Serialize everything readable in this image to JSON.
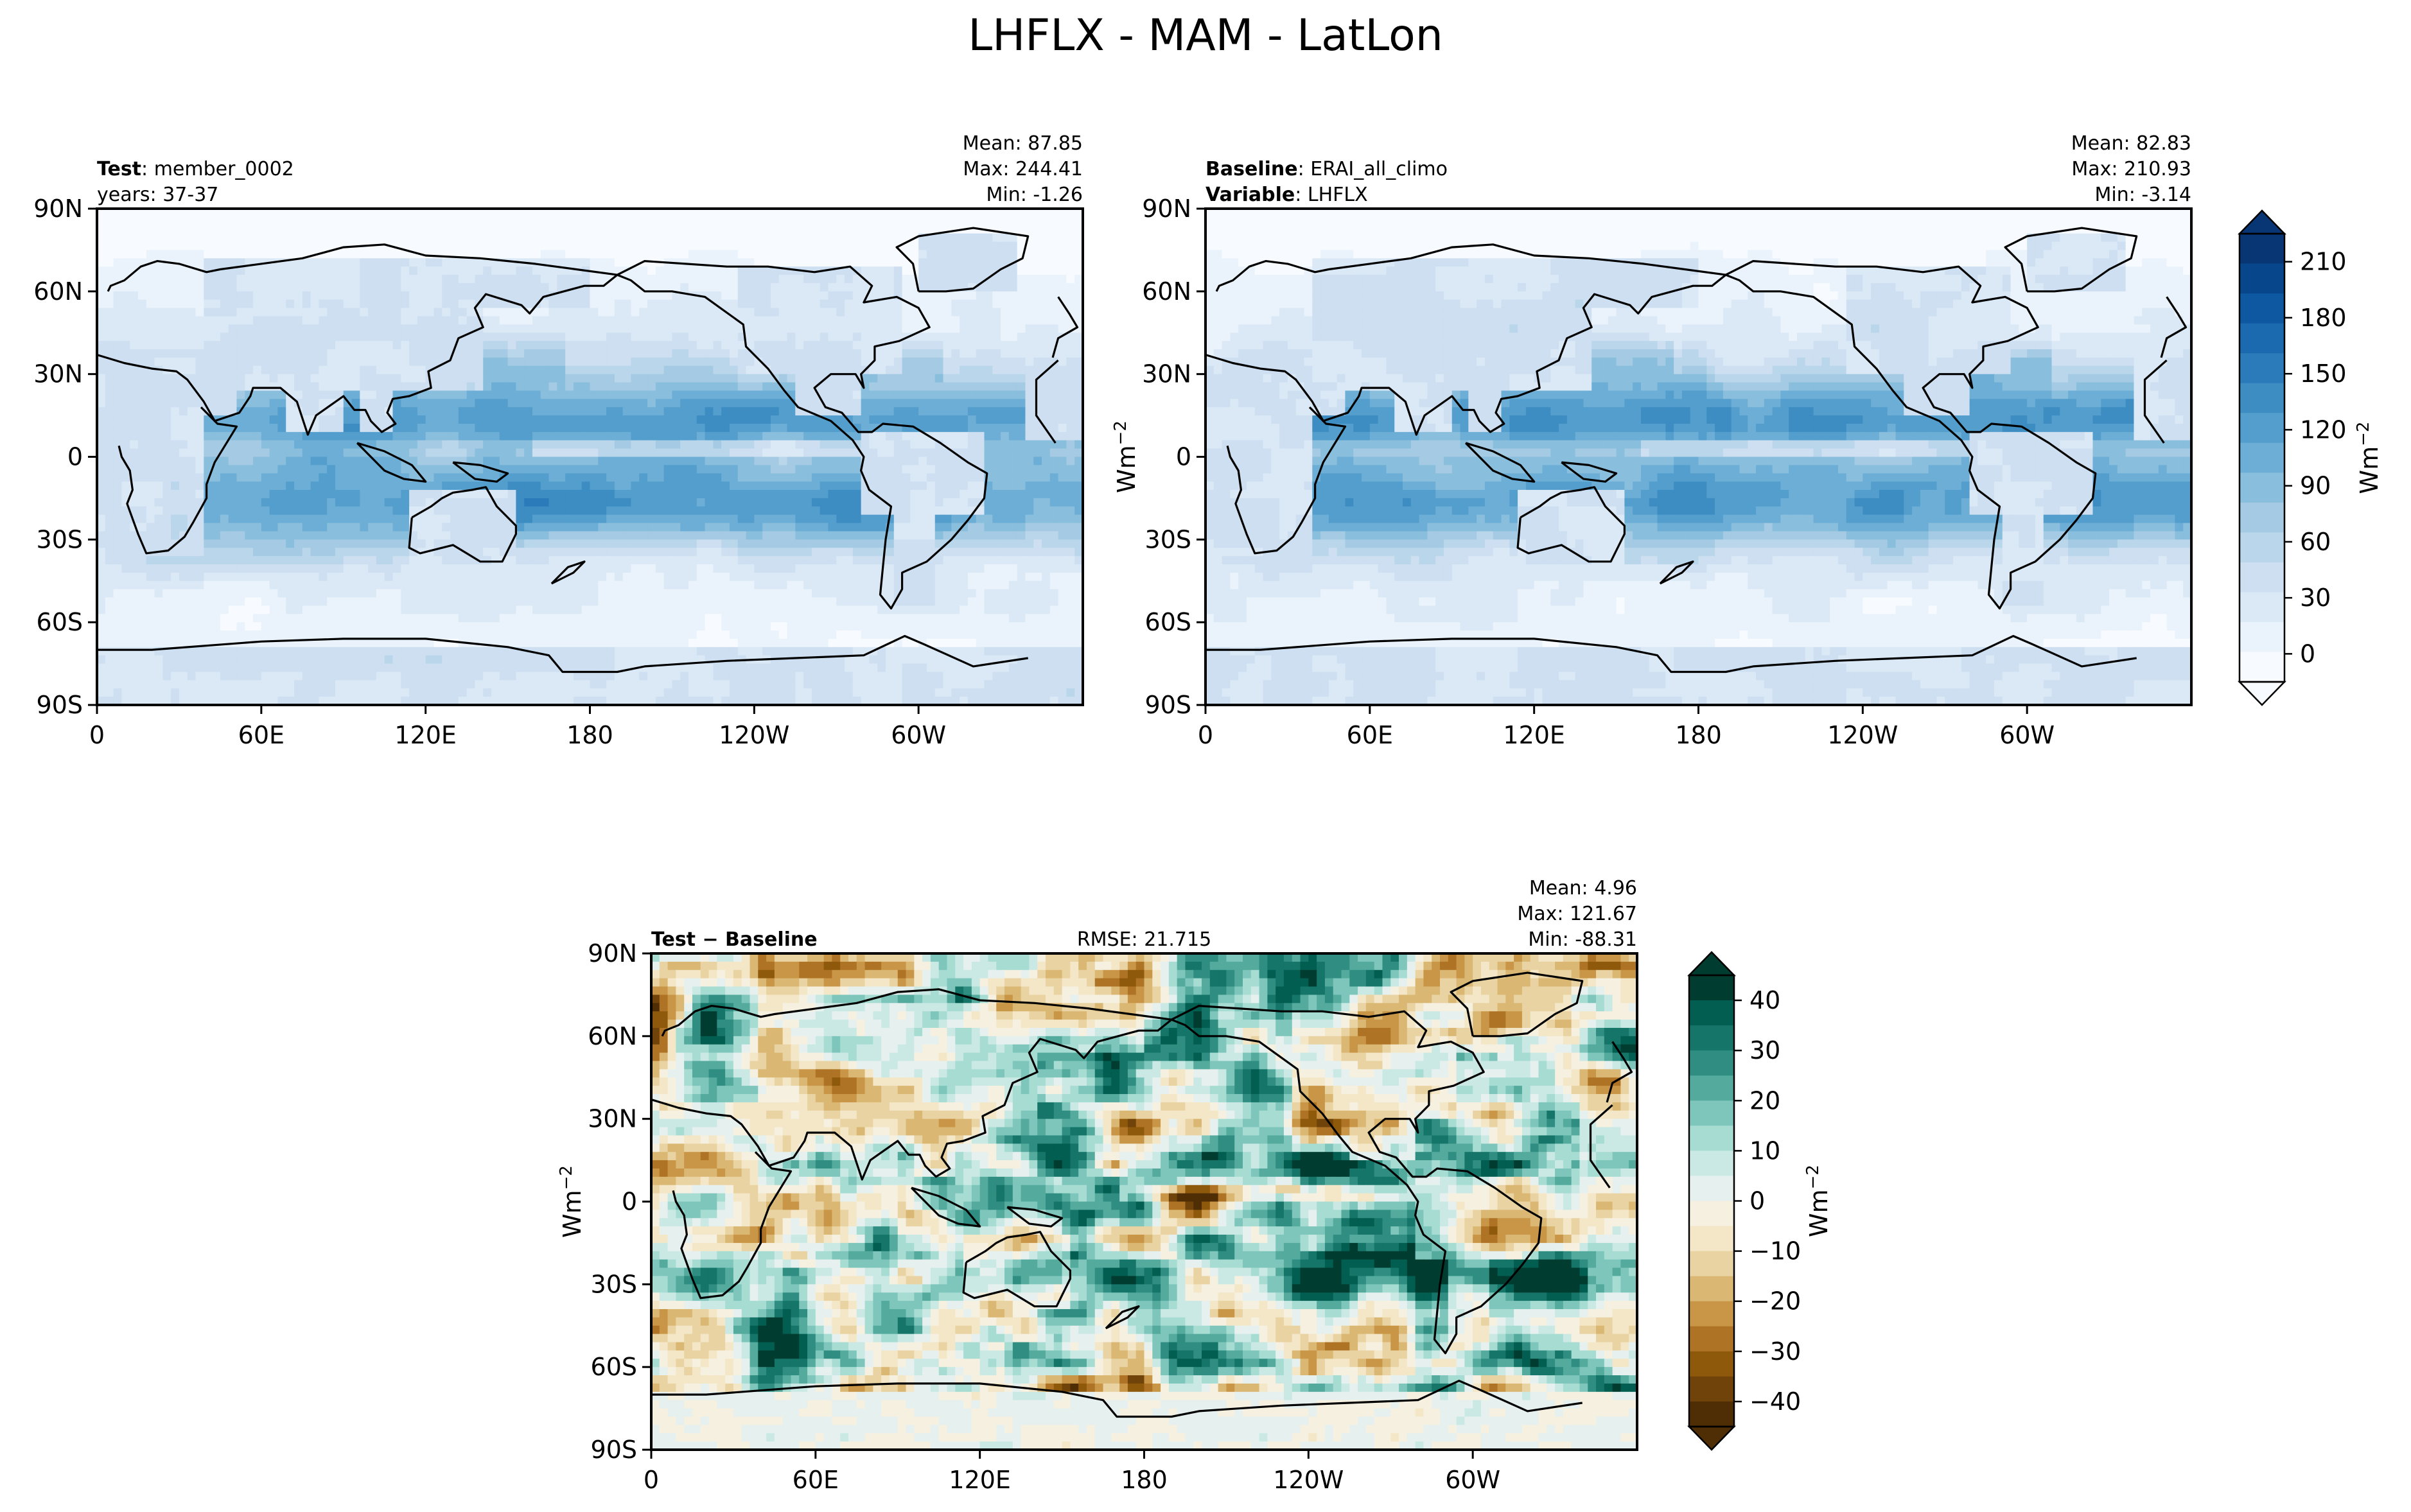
{
  "figure": {
    "title": "LHFLX - MAM - LatLon"
  },
  "panels": [
    {
      "id": "test",
      "left_lines": [
        {
          "bold": "Test",
          "sep": ": ",
          "rest": "member_0002"
        },
        {
          "bold": "",
          "sep": "",
          "rest": "years: 37-37"
        }
      ],
      "center": "",
      "stats": [
        "Mean: 87.85",
        "Max: 244.41",
        "Min: -1.26"
      ],
      "ylabel": "",
      "ylabel_sup": ""
    },
    {
      "id": "baseline",
      "left_lines": [
        {
          "bold": "Baseline",
          "sep": ": ",
          "rest": "ERAI_all_climo"
        },
        {
          "bold": "Variable",
          "sep": ": ",
          "rest": "LHFLX"
        }
      ],
      "center": "",
      "stats": [
        "Mean: 82.83",
        "Max: 210.93",
        "Min: -3.14"
      ],
      "ylabel": "Wm",
      "ylabel_sup": "−2"
    },
    {
      "id": "diff",
      "left_lines": [
        {
          "bold": "Test − Baseline",
          "sep": "",
          "rest": ""
        }
      ],
      "center": "RMSE: 21.715",
      "stats": [
        "Mean:  4.96",
        "Max: 121.67",
        "Min: -88.31"
      ],
      "ylabel": "Wm",
      "ylabel_sup": "−2"
    }
  ],
  "axes": {
    "xticks": [
      "0",
      "60E",
      "120E",
      "180",
      "120W",
      "60W"
    ],
    "yticks": [
      "90N",
      "60N",
      "30N",
      "0",
      "30S",
      "60S",
      "90S"
    ]
  },
  "colorbars": [
    {
      "id": "cbar-field",
      "label": "Wm",
      "label_sup": "−2",
      "ticks": [
        "210",
        "180",
        "150",
        "120",
        "90",
        "60",
        "30",
        "0"
      ],
      "colors": [
        "#f7fbff",
        "#eaf3fb",
        "#dbe9f6",
        "#cddff1",
        "#bad6eb",
        "#a4cbe3",
        "#89bedc",
        "#6caed6",
        "#539ecd",
        "#3d8dc3",
        "#2b7bba",
        "#1b69af",
        "#0d58a1",
        "#08468b",
        "#083573"
      ]
    },
    {
      "id": "cbar-diff",
      "label": "Wm",
      "label_sup": "−2",
      "ticks": [
        "40",
        "30",
        "20",
        "10",
        "0",
        "−10",
        "−20",
        "−30",
        "−40"
      ],
      "colors": [
        "#4f2d05",
        "#6f4309",
        "#8f590c",
        "#af7325",
        "#c99546",
        "#dab874",
        "#e9d3a2",
        "#f4e7c7",
        "#f5f0e0",
        "#e6f1ef",
        "#cbe9e4",
        "#a7dcd3",
        "#7ec6bb",
        "#53aa9d",
        "#2f8e81",
        "#157568",
        "#015e50",
        "#003c30"
      ]
    }
  ],
  "chart_data": [
    {
      "type": "heatmap",
      "title": "Test: member_0002, years: 37-37",
      "variable": "LHFLX",
      "units": "Wm^-2",
      "mean": 87.85,
      "max": 244.41,
      "min": -1.26,
      "colorbar": {
        "levels_range": [
          0,
          210
        ],
        "tick_values": [
          0,
          30,
          60,
          90,
          120,
          150,
          180,
          210
        ]
      },
      "x_range": [
        0,
        360
      ],
      "y_range": [
        -90,
        90
      ]
    },
    {
      "type": "heatmap",
      "title": "Baseline: ERAI_all_climo, Variable: LHFLX",
      "variable": "LHFLX",
      "units": "Wm^-2",
      "mean": 82.83,
      "max": 210.93,
      "min": -3.14,
      "colorbar": {
        "levels_range": [
          0,
          210
        ],
        "tick_values": [
          0,
          30,
          60,
          90,
          120,
          150,
          180,
          210
        ]
      },
      "x_range": [
        0,
        360
      ],
      "y_range": [
        -90,
        90
      ]
    },
    {
      "type": "heatmap",
      "title": "Test − Baseline",
      "variable": "LHFLX",
      "units": "Wm^-2",
      "rmse": 21.715,
      "mean": 4.96,
      "max": 121.67,
      "min": -88.31,
      "colorbar": {
        "levels_range": [
          -45,
          45
        ],
        "tick_values": [
          -40,
          -30,
          -20,
          -10,
          0,
          10,
          20,
          30,
          40
        ]
      },
      "x_range": [
        0,
        360
      ],
      "y_range": [
        -90,
        90
      ]
    }
  ]
}
